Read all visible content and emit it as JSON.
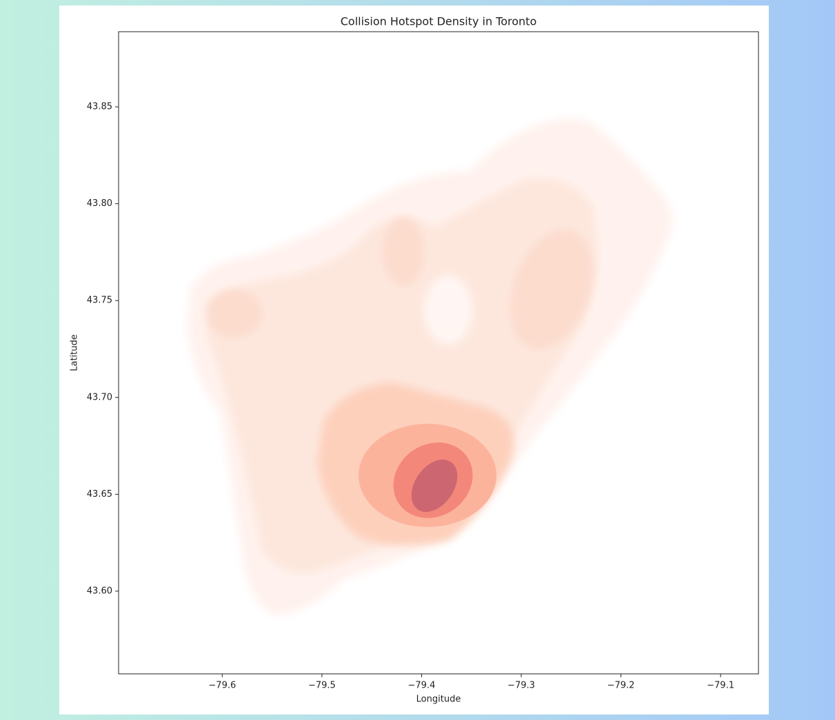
{
  "chart_data": {
    "type": "kde",
    "title": "Collision Hotspot Density in Toronto",
    "x_label": "Longitude",
    "y_label": "Latitude",
    "xlim": [
      -79.704,
      -79.062
    ],
    "ylim": [
      43.5573,
      43.8888
    ],
    "xticks": [
      {
        "value": -79.6,
        "label": "−79.6"
      },
      {
        "value": -79.5,
        "label": "−79.5"
      },
      {
        "value": -79.4,
        "label": "−79.4"
      },
      {
        "value": -79.3,
        "label": "−79.3"
      },
      {
        "value": -79.2,
        "label": "−79.2"
      },
      {
        "value": -79.1,
        "label": "−79.1"
      }
    ],
    "yticks": [
      {
        "value": 43.6,
        "label": "43.60"
      },
      {
        "value": 43.65,
        "label": "43.65"
      },
      {
        "value": 43.7,
        "label": "43.70"
      },
      {
        "value": 43.75,
        "label": "43.75"
      },
      {
        "value": 43.8,
        "label": "43.80"
      },
      {
        "value": 43.85,
        "label": "43.85"
      }
    ],
    "grid": false
  }
}
